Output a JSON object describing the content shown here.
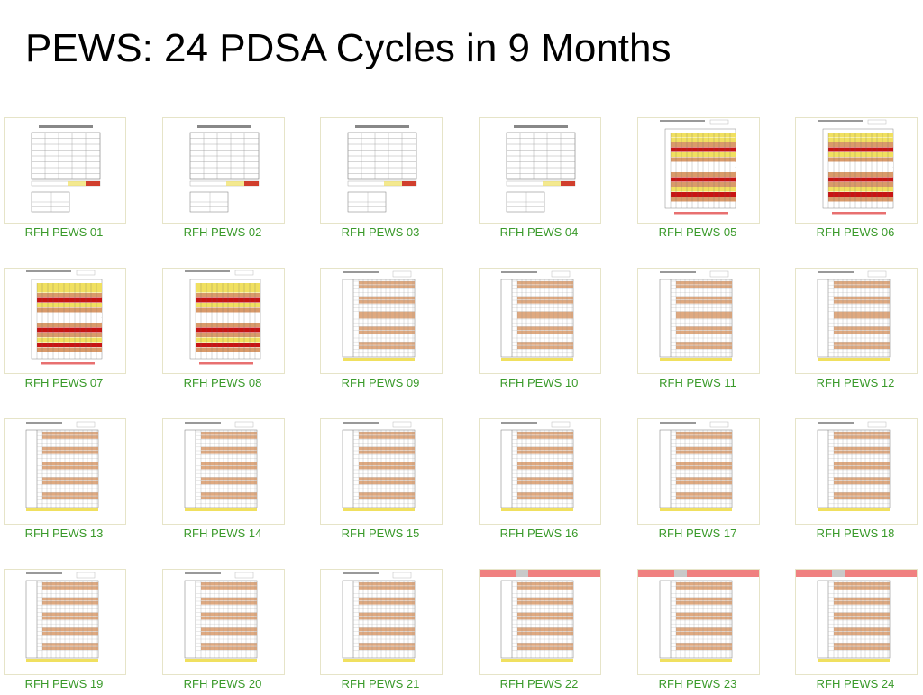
{
  "slide": {
    "title": "PEWS: 24 PDSA Cycles in 9 Months"
  },
  "colors": {
    "caption": "#3a9a2a",
    "thumb_border": "#e6e4c8",
    "band_orange": "#d99a6a",
    "band_red": "#c81414",
    "band_yellow": "#f0e060",
    "band_pink": "#e87070",
    "header_pink": "#f08080"
  },
  "thumbnails": [
    {
      "label": "RFH PEWS 01",
      "style": "table-sheet"
    },
    {
      "label": "RFH PEWS 02",
      "style": "table-sheet"
    },
    {
      "label": "RFH PEWS 03",
      "style": "table-sheet"
    },
    {
      "label": "RFH PEWS 04",
      "style": "table-sheet"
    },
    {
      "label": "RFH PEWS 05",
      "style": "colored-chart"
    },
    {
      "label": "RFH PEWS 06",
      "style": "colored-chart"
    },
    {
      "label": "RFH PEWS 07",
      "style": "colored-chart"
    },
    {
      "label": "RFH PEWS 08",
      "style": "colored-chart"
    },
    {
      "label": "RFH PEWS 09",
      "style": "grid-chart"
    },
    {
      "label": "RFH PEWS 10",
      "style": "grid-chart"
    },
    {
      "label": "RFH PEWS 11",
      "style": "grid-chart"
    },
    {
      "label": "RFH PEWS 12",
      "style": "grid-chart"
    },
    {
      "label": "RFH PEWS 13",
      "style": "grid-chart"
    },
    {
      "label": "RFH PEWS 14",
      "style": "grid-chart"
    },
    {
      "label": "RFH PEWS 15",
      "style": "grid-chart"
    },
    {
      "label": "RFH PEWS 16",
      "style": "grid-chart"
    },
    {
      "label": "RFH PEWS 17",
      "style": "grid-chart"
    },
    {
      "label": "RFH PEWS 18",
      "style": "grid-chart"
    },
    {
      "label": "RFH PEWS 19",
      "style": "grid-chart"
    },
    {
      "label": "RFH PEWS 20",
      "style": "grid-chart"
    },
    {
      "label": "RFH PEWS 21",
      "style": "grid-chart"
    },
    {
      "label": "RFH PEWS 22",
      "style": "grid-chart-header"
    },
    {
      "label": "RFH PEWS 23",
      "style": "grid-chart-header"
    },
    {
      "label": "RFH PEWS 24",
      "style": "grid-chart-header"
    }
  ]
}
